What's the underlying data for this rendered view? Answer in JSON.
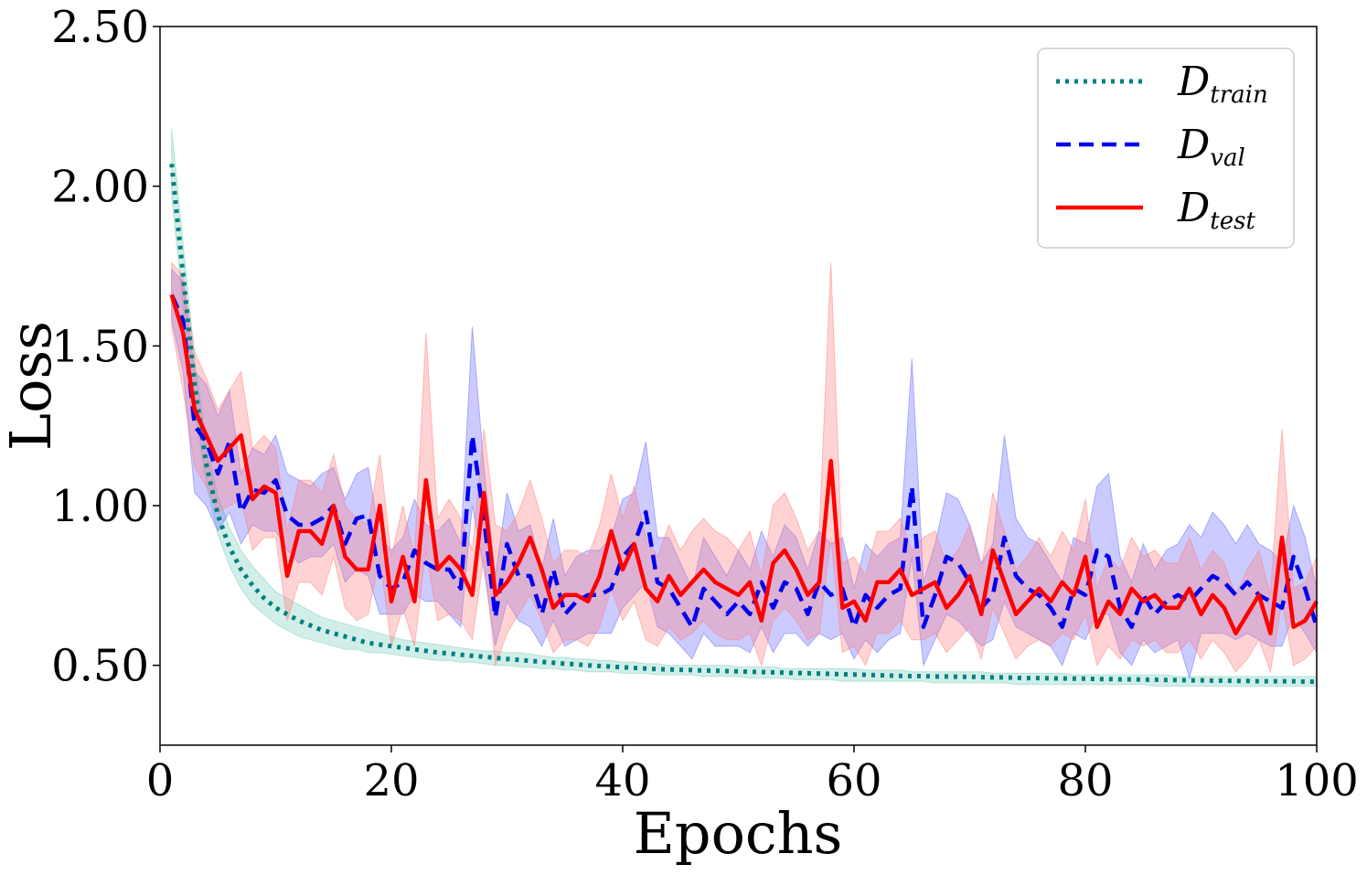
{
  "chart_data": {
    "type": "line",
    "title": "",
    "xlabel": "Epochs",
    "ylabel": "Loss",
    "xlim": [
      0,
      100
    ],
    "ylim": [
      0.25,
      2.5
    ],
    "xticks": [
      0,
      20,
      40,
      60,
      80,
      100
    ],
    "xtick_labels": [
      "0",
      "20",
      "40",
      "60",
      "80",
      "100"
    ],
    "yticks": [
      0.5,
      1.0,
      1.5,
      2.0,
      2.5
    ],
    "ytick_labels": [
      "0.50",
      "1.00",
      "1.50",
      "2.00",
      "2.50"
    ],
    "grid": false,
    "legend_position": "top-right",
    "legend": [
      {
        "main": "D",
        "sub": "train",
        "style": "dotted"
      },
      {
        "main": "D",
        "sub": "val",
        "style": "dashed"
      },
      {
        "main": "D",
        "sub": "test",
        "style": "solid"
      }
    ],
    "x": [
      1,
      2,
      3,
      4,
      5,
      6,
      7,
      8,
      9,
      10,
      11,
      12,
      13,
      14,
      15,
      16,
      17,
      18,
      19,
      20,
      21,
      22,
      23,
      24,
      25,
      26,
      27,
      28,
      29,
      30,
      31,
      32,
      33,
      34,
      35,
      36,
      37,
      38,
      39,
      40,
      41,
      42,
      43,
      44,
      45,
      46,
      47,
      48,
      49,
      50,
      51,
      52,
      53,
      54,
      55,
      56,
      57,
      58,
      59,
      60,
      61,
      62,
      63,
      64,
      65,
      66,
      67,
      68,
      69,
      70,
      71,
      72,
      73,
      74,
      75,
      76,
      77,
      78,
      79,
      80,
      81,
      82,
      83,
      84,
      85,
      86,
      87,
      88,
      89,
      90,
      91,
      92,
      93,
      94,
      95,
      96,
      97,
      98,
      99,
      100
    ],
    "series": [
      {
        "name": "D_train",
        "color": "#008080",
        "band_color": "#7fcfc0",
        "style": "dotted",
        "values": [
          2.07,
          1.72,
          1.38,
          1.13,
          0.97,
          0.87,
          0.8,
          0.75,
          0.71,
          0.68,
          0.66,
          0.64,
          0.625,
          0.61,
          0.6,
          0.59,
          0.58,
          0.57,
          0.565,
          0.56,
          0.555,
          0.55,
          0.545,
          0.54,
          0.537,
          0.533,
          0.53,
          0.527,
          0.523,
          0.52,
          0.517,
          0.514,
          0.511,
          0.508,
          0.505,
          0.503,
          0.5,
          0.498,
          0.496,
          0.494,
          0.492,
          0.49,
          0.488,
          0.487,
          0.486,
          0.485,
          0.484,
          0.483,
          0.482,
          0.481,
          0.48,
          0.479,
          0.478,
          0.477,
          0.476,
          0.475,
          0.474,
          0.473,
          0.472,
          0.471,
          0.47,
          0.469,
          0.468,
          0.467,
          0.466,
          0.466,
          0.465,
          0.465,
          0.464,
          0.464,
          0.463,
          0.462,
          0.462,
          0.461,
          0.46,
          0.46,
          0.459,
          0.459,
          0.458,
          0.458,
          0.457,
          0.457,
          0.456,
          0.456,
          0.455,
          0.455,
          0.454,
          0.454,
          0.453,
          0.453,
          0.452,
          0.452,
          0.451,
          0.451,
          0.45,
          0.45,
          0.45,
          0.45,
          0.449,
          0.449
        ],
        "lower": [
          1.97,
          1.62,
          1.3,
          1.07,
          0.91,
          0.81,
          0.74,
          0.69,
          0.66,
          0.63,
          0.61,
          0.59,
          0.58,
          0.57,
          0.56,
          0.55,
          0.55,
          0.54,
          0.54,
          0.535,
          0.53,
          0.525,
          0.52,
          0.515,
          0.515,
          0.51,
          0.51,
          0.505,
          0.5,
          0.5,
          0.495,
          0.495,
          0.49,
          0.49,
          0.485,
          0.485,
          0.48,
          0.48,
          0.48,
          0.475,
          0.475,
          0.475,
          0.47,
          0.47,
          0.47,
          0.47,
          0.465,
          0.465,
          0.465,
          0.465,
          0.46,
          0.46,
          0.46,
          0.46,
          0.455,
          0.455,
          0.455,
          0.455,
          0.45,
          0.45,
          0.45,
          0.45,
          0.45,
          0.45,
          0.45,
          0.45,
          0.445,
          0.445,
          0.445,
          0.445,
          0.445,
          0.445,
          0.445,
          0.44,
          0.44,
          0.44,
          0.44,
          0.44,
          0.44,
          0.44,
          0.44,
          0.44,
          0.44,
          0.44,
          0.44,
          0.435,
          0.435,
          0.435,
          0.435,
          0.435,
          0.435,
          0.435,
          0.435,
          0.435,
          0.435,
          0.435,
          0.435,
          0.435,
          0.435,
          0.435
        ],
        "upper": [
          2.18,
          1.82,
          1.46,
          1.2,
          1.03,
          0.93,
          0.86,
          0.81,
          0.77,
          0.73,
          0.71,
          0.69,
          0.67,
          0.65,
          0.64,
          0.63,
          0.62,
          0.61,
          0.6,
          0.59,
          0.58,
          0.575,
          0.57,
          0.565,
          0.56,
          0.555,
          0.55,
          0.545,
          0.545,
          0.54,
          0.54,
          0.535,
          0.53,
          0.525,
          0.525,
          0.52,
          0.52,
          0.515,
          0.515,
          0.51,
          0.51,
          0.505,
          0.505,
          0.5,
          0.5,
          0.5,
          0.5,
          0.5,
          0.5,
          0.495,
          0.495,
          0.495,
          0.495,
          0.49,
          0.49,
          0.49,
          0.49,
          0.49,
          0.49,
          0.49,
          0.485,
          0.485,
          0.485,
          0.485,
          0.48,
          0.48,
          0.48,
          0.48,
          0.48,
          0.48,
          0.48,
          0.475,
          0.475,
          0.475,
          0.475,
          0.475,
          0.475,
          0.475,
          0.47,
          0.47,
          0.47,
          0.47,
          0.47,
          0.47,
          0.47,
          0.47,
          0.47,
          0.465,
          0.465,
          0.465,
          0.465,
          0.465,
          0.465,
          0.465,
          0.465,
          0.465,
          0.465,
          0.465,
          0.465,
          0.465
        ]
      },
      {
        "name": "D_val",
        "color": "#0000ee",
        "band_color": "#6b6bff",
        "style": "dashed",
        "values": [
          1.66,
          1.58,
          1.25,
          1.2,
          1.1,
          1.2,
          0.98,
          1.05,
          1.04,
          1.08,
          0.97,
          0.94,
          0.94,
          0.96,
          1.0,
          0.88,
          0.96,
          0.97,
          0.78,
          0.74,
          0.76,
          0.86,
          0.82,
          0.8,
          0.8,
          0.74,
          1.22,
          0.96,
          0.65,
          0.88,
          0.78,
          0.78,
          0.66,
          0.8,
          0.66,
          0.7,
          0.72,
          0.72,
          0.74,
          0.84,
          0.88,
          0.98,
          0.76,
          0.74,
          0.68,
          0.62,
          0.74,
          0.7,
          0.66,
          0.7,
          0.66,
          0.76,
          0.68,
          0.76,
          0.74,
          0.66,
          0.76,
          0.72,
          0.74,
          0.62,
          0.72,
          0.68,
          0.72,
          0.74,
          1.06,
          0.62,
          0.72,
          0.84,
          0.82,
          0.76,
          0.68,
          0.72,
          0.9,
          0.78,
          0.74,
          0.72,
          0.68,
          0.62,
          0.74,
          0.72,
          0.86,
          0.84,
          0.68,
          0.62,
          0.72,
          0.66,
          0.7,
          0.72,
          0.7,
          0.74,
          0.78,
          0.76,
          0.72,
          0.76,
          0.72,
          0.7,
          0.68,
          0.84,
          0.74,
          0.62
        ],
        "lower": [
          1.58,
          1.42,
          1.04,
          1.0,
          0.92,
          0.98,
          0.88,
          0.94,
          0.92,
          0.92,
          0.86,
          0.82,
          0.84,
          0.84,
          0.88,
          0.76,
          0.8,
          0.78,
          0.66,
          0.66,
          0.66,
          0.72,
          0.7,
          0.7,
          0.66,
          0.62,
          1.0,
          0.8,
          0.56,
          0.7,
          0.64,
          0.62,
          0.56,
          0.64,
          0.56,
          0.58,
          0.6,
          0.6,
          0.6,
          0.68,
          0.72,
          0.76,
          0.62,
          0.6,
          0.56,
          0.52,
          0.6,
          0.56,
          0.56,
          0.56,
          0.54,
          0.62,
          0.54,
          0.6,
          0.6,
          0.56,
          0.6,
          0.58,
          0.6,
          0.52,
          0.58,
          0.54,
          0.58,
          0.6,
          0.84,
          0.5,
          0.58,
          0.66,
          0.64,
          0.6,
          0.56,
          0.58,
          0.7,
          0.62,
          0.6,
          0.58,
          0.56,
          0.5,
          0.6,
          0.58,
          0.66,
          0.66,
          0.54,
          0.5,
          0.58,
          0.54,
          0.56,
          0.58,
          0.46,
          0.6,
          0.6,
          0.6,
          0.58,
          0.6,
          0.58,
          0.56,
          0.56,
          0.66,
          0.6,
          0.54
        ],
        "upper": [
          1.74,
          1.7,
          1.42,
          1.38,
          1.28,
          1.36,
          1.1,
          1.18,
          1.16,
          1.22,
          1.1,
          1.08,
          1.06,
          1.1,
          1.12,
          1.02,
          1.1,
          1.12,
          0.9,
          0.86,
          0.9,
          1.02,
          0.94,
          0.92,
          0.96,
          0.88,
          1.56,
          1.12,
          0.78,
          1.04,
          0.92,
          0.94,
          0.8,
          0.96,
          0.78,
          0.84,
          0.86,
          0.86,
          0.9,
          1.02,
          1.04,
          1.2,
          0.9,
          0.9,
          0.82,
          0.74,
          0.9,
          0.84,
          0.78,
          0.86,
          0.8,
          0.92,
          0.84,
          0.94,
          0.9,
          0.8,
          0.92,
          0.88,
          0.9,
          0.74,
          0.88,
          0.84,
          0.88,
          0.9,
          1.46,
          0.76,
          0.88,
          1.04,
          1.02,
          0.94,
          0.82,
          0.88,
          1.22,
          0.96,
          0.9,
          0.88,
          0.82,
          0.76,
          0.9,
          0.88,
          1.06,
          1.1,
          0.84,
          0.76,
          0.88,
          0.8,
          0.86,
          0.88,
          0.94,
          0.9,
          0.98,
          0.94,
          0.88,
          0.94,
          0.88,
          0.86,
          0.82,
          1.0,
          0.9,
          0.74
        ]
      },
      {
        "name": "D_test",
        "color": "#ff0000",
        "band_color": "#ff8080",
        "style": "solid",
        "values": [
          1.66,
          1.54,
          1.3,
          1.22,
          1.14,
          1.18,
          1.22,
          1.02,
          1.06,
          1.04,
          0.78,
          0.92,
          0.92,
          0.88,
          1.0,
          0.84,
          0.8,
          0.8,
          1.0,
          0.7,
          0.84,
          0.7,
          1.08,
          0.8,
          0.84,
          0.8,
          0.72,
          1.04,
          0.72,
          0.76,
          0.82,
          0.9,
          0.8,
          0.68,
          0.72,
          0.72,
          0.7,
          0.78,
          0.92,
          0.8,
          0.88,
          0.74,
          0.7,
          0.78,
          0.72,
          0.76,
          0.8,
          0.76,
          0.74,
          0.72,
          0.76,
          0.64,
          0.82,
          0.86,
          0.8,
          0.72,
          0.76,
          1.14,
          0.68,
          0.7,
          0.64,
          0.76,
          0.76,
          0.8,
          0.72,
          0.74,
          0.76,
          0.68,
          0.72,
          0.78,
          0.66,
          0.86,
          0.76,
          0.66,
          0.7,
          0.74,
          0.7,
          0.76,
          0.72,
          0.84,
          0.62,
          0.7,
          0.66,
          0.74,
          0.7,
          0.72,
          0.68,
          0.68,
          0.74,
          0.66,
          0.72,
          0.68,
          0.6,
          0.66,
          0.72,
          0.6,
          0.9,
          0.62,
          0.64,
          0.7
        ],
        "lower": [
          1.56,
          1.36,
          1.12,
          1.06,
          0.98,
          1.0,
          1.02,
          0.86,
          0.9,
          0.9,
          0.64,
          0.76,
          0.76,
          0.72,
          0.84,
          0.68,
          0.64,
          0.66,
          0.84,
          0.56,
          0.68,
          0.56,
          0.86,
          0.64,
          0.66,
          0.64,
          0.58,
          0.84,
          0.5,
          0.6,
          0.66,
          0.72,
          0.64,
          0.54,
          0.58,
          0.58,
          0.56,
          0.62,
          0.74,
          0.64,
          0.7,
          0.58,
          0.56,
          0.62,
          0.58,
          0.6,
          0.64,
          0.6,
          0.58,
          0.58,
          0.6,
          0.5,
          0.64,
          0.68,
          0.64,
          0.58,
          0.6,
          0.9,
          0.54,
          0.56,
          0.5,
          0.6,
          0.6,
          0.64,
          0.58,
          0.58,
          0.6,
          0.54,
          0.58,
          0.62,
          0.52,
          0.68,
          0.6,
          0.52,
          0.56,
          0.58,
          0.56,
          0.6,
          0.58,
          0.66,
          0.5,
          0.56,
          0.52,
          0.58,
          0.56,
          0.58,
          0.54,
          0.54,
          0.58,
          0.52,
          0.58,
          0.54,
          0.48,
          0.52,
          0.58,
          0.48,
          0.7,
          0.5,
          0.52,
          0.56
        ],
        "upper": [
          1.76,
          1.72,
          1.48,
          1.4,
          1.3,
          1.36,
          1.42,
          1.18,
          1.22,
          1.18,
          0.92,
          1.08,
          1.08,
          1.04,
          1.16,
          1.0,
          0.96,
          0.94,
          1.16,
          0.84,
          1.0,
          0.84,
          1.54,
          0.96,
          1.02,
          0.96,
          0.86,
          1.24,
          0.94,
          0.92,
          0.98,
          1.08,
          0.96,
          0.82,
          0.86,
          0.86,
          0.84,
          0.94,
          1.1,
          0.96,
          1.06,
          0.9,
          0.84,
          0.94,
          0.86,
          0.92,
          0.96,
          0.92,
          0.9,
          0.86,
          0.92,
          0.78,
          1.0,
          1.04,
          0.96,
          0.86,
          0.92,
          1.76,
          0.82,
          0.84,
          0.78,
          0.92,
          0.92,
          0.96,
          0.86,
          0.9,
          0.92,
          0.82,
          0.86,
          0.94,
          0.8,
          1.04,
          0.92,
          0.8,
          0.84,
          0.9,
          0.84,
          0.92,
          0.86,
          1.02,
          0.74,
          0.84,
          0.8,
          0.9,
          0.84,
          0.86,
          0.82,
          0.82,
          0.9,
          0.8,
          0.86,
          0.82,
          0.72,
          0.8,
          0.86,
          0.72,
          1.24,
          0.74,
          0.76,
          0.84
        ]
      }
    ]
  }
}
